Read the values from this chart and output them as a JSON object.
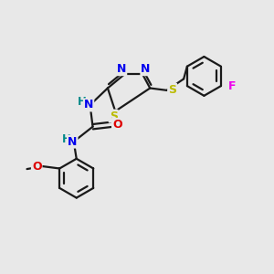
{
  "bg_color": "#e8e8e8",
  "bond_color": "#1a1a1a",
  "bond_width": 1.6,
  "atom_colors": {
    "N": "#0000ee",
    "S": "#bbbb00",
    "O": "#dd0000",
    "F": "#ee00ee",
    "H": "#008888",
    "C": "#1a1a1a"
  },
  "figsize": [
    3.0,
    3.0
  ],
  "dpi": 100,
  "xlim": [
    0,
    10
  ],
  "ylim": [
    0,
    10
  ]
}
